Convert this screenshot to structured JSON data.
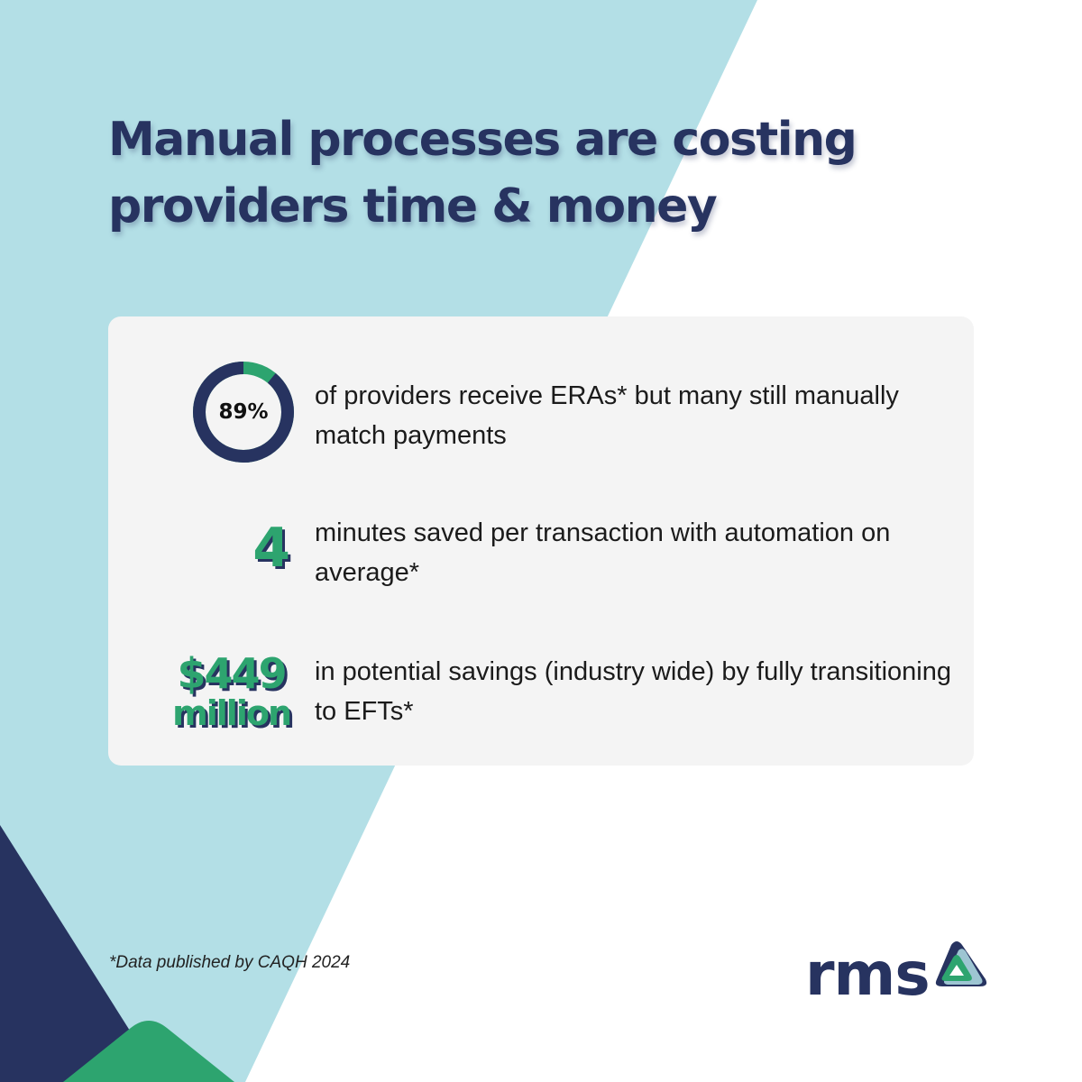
{
  "colors": {
    "navy": "#273360",
    "green": "#2da46f",
    "light_blue": "#b3dfe6",
    "card_bg": "#f4f4f4"
  },
  "headline": {
    "line1": "Manual processes are costing",
    "line2": "providers time & money"
  },
  "stats": [
    {
      "value": "89%",
      "ring_fraction": 0.89,
      "text": "of providers receive ERAs* but many still manually match payments"
    },
    {
      "value": "4",
      "text": "minutes saved per transaction with automation on average*"
    },
    {
      "value_line1": "$449",
      "value_line2": "million",
      "text": "in potential savings (industry wide) by fully transitioning to EFTs*"
    }
  ],
  "footnote": "*Data published by CAQH 2024",
  "logo": {
    "text": "rms",
    "icon": "triangle-logo-icon"
  }
}
